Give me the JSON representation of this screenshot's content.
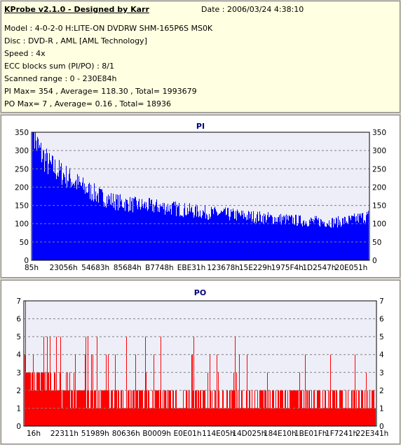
{
  "info": {
    "title": "KProbe v2.1.0 - Designed by Karr",
    "date": "Date : 2006/03/24 4:38:10",
    "lines": [
      "Model : 4-0-2-0 H:LITE-ON DVDRW SHM-165P6S MS0K",
      "Disc : DVD-R , AML [AML Technology]",
      "Speed : 4x",
      "ECC blocks sum (PI/PO) : 8/1",
      "Scanned range : 0 - 230E84h",
      "PI Max= 354 , Average= 118.30 , Total= 1993679",
      "PO Max= 7 , Average= 0.16 , Total= 18936"
    ]
  },
  "colors": {
    "pi": "#0000ff",
    "po": "#ff0000",
    "plot_bg": "#eeeef8",
    "grid": "#808080"
  },
  "chart_data": [
    {
      "type": "area",
      "title": "PI",
      "ylim": [
        0,
        350
      ],
      "yticks": [
        0,
        50,
        100,
        150,
        200,
        250,
        300,
        350
      ],
      "xticklabels": [
        "85h",
        "23056h",
        "54683h",
        "85684h",
        "B7748h",
        "EBE31h",
        "123678h",
        "15E229h",
        "1975F4h",
        "1D2547h",
        "20E051h"
      ],
      "grid": true,
      "profile": [
        [
          0,
          350
        ],
        [
          0.02,
          300
        ],
        [
          0.05,
          260
        ],
        [
          0.1,
          230
        ],
        [
          0.15,
          200
        ],
        [
          0.2,
          175
        ],
        [
          0.25,
          160
        ],
        [
          0.3,
          152
        ],
        [
          0.35,
          148
        ],
        [
          0.4,
          145
        ],
        [
          0.45,
          138
        ],
        [
          0.5,
          132
        ],
        [
          0.55,
          128
        ],
        [
          0.6,
          124
        ],
        [
          0.65,
          120
        ],
        [
          0.7,
          116
        ],
        [
          0.75,
          112
        ],
        [
          0.8,
          108
        ],
        [
          0.85,
          106
        ],
        [
          0.9,
          104
        ],
        [
          0.95,
          110
        ],
        [
          1.0,
          122
        ]
      ],
      "max": 354,
      "average": 118.3
    },
    {
      "type": "bar",
      "title": "PO",
      "ylim": [
        0,
        7
      ],
      "yticks": [
        0,
        1,
        2,
        3,
        4,
        5,
        6,
        7
      ],
      "xticklabels": [
        "16h",
        "22311h",
        "51989h",
        "80636h",
        "B0009h",
        "E0E01h",
        "114E05h",
        "14D025h",
        "184E10h",
        "1BE01Fh",
        "1F7241h",
        "22E341h"
      ],
      "grid": true,
      "profile": [
        [
          0,
          3.6
        ],
        [
          0.05,
          3.0
        ],
        [
          0.1,
          2.7
        ],
        [
          0.2,
          2.3
        ],
        [
          0.3,
          2.1
        ],
        [
          0.5,
          2.0
        ],
        [
          0.7,
          2.0
        ],
        [
          0.9,
          2.0
        ],
        [
          1.0,
          2.1
        ]
      ],
      "max": 7,
      "average": 0.16
    }
  ]
}
